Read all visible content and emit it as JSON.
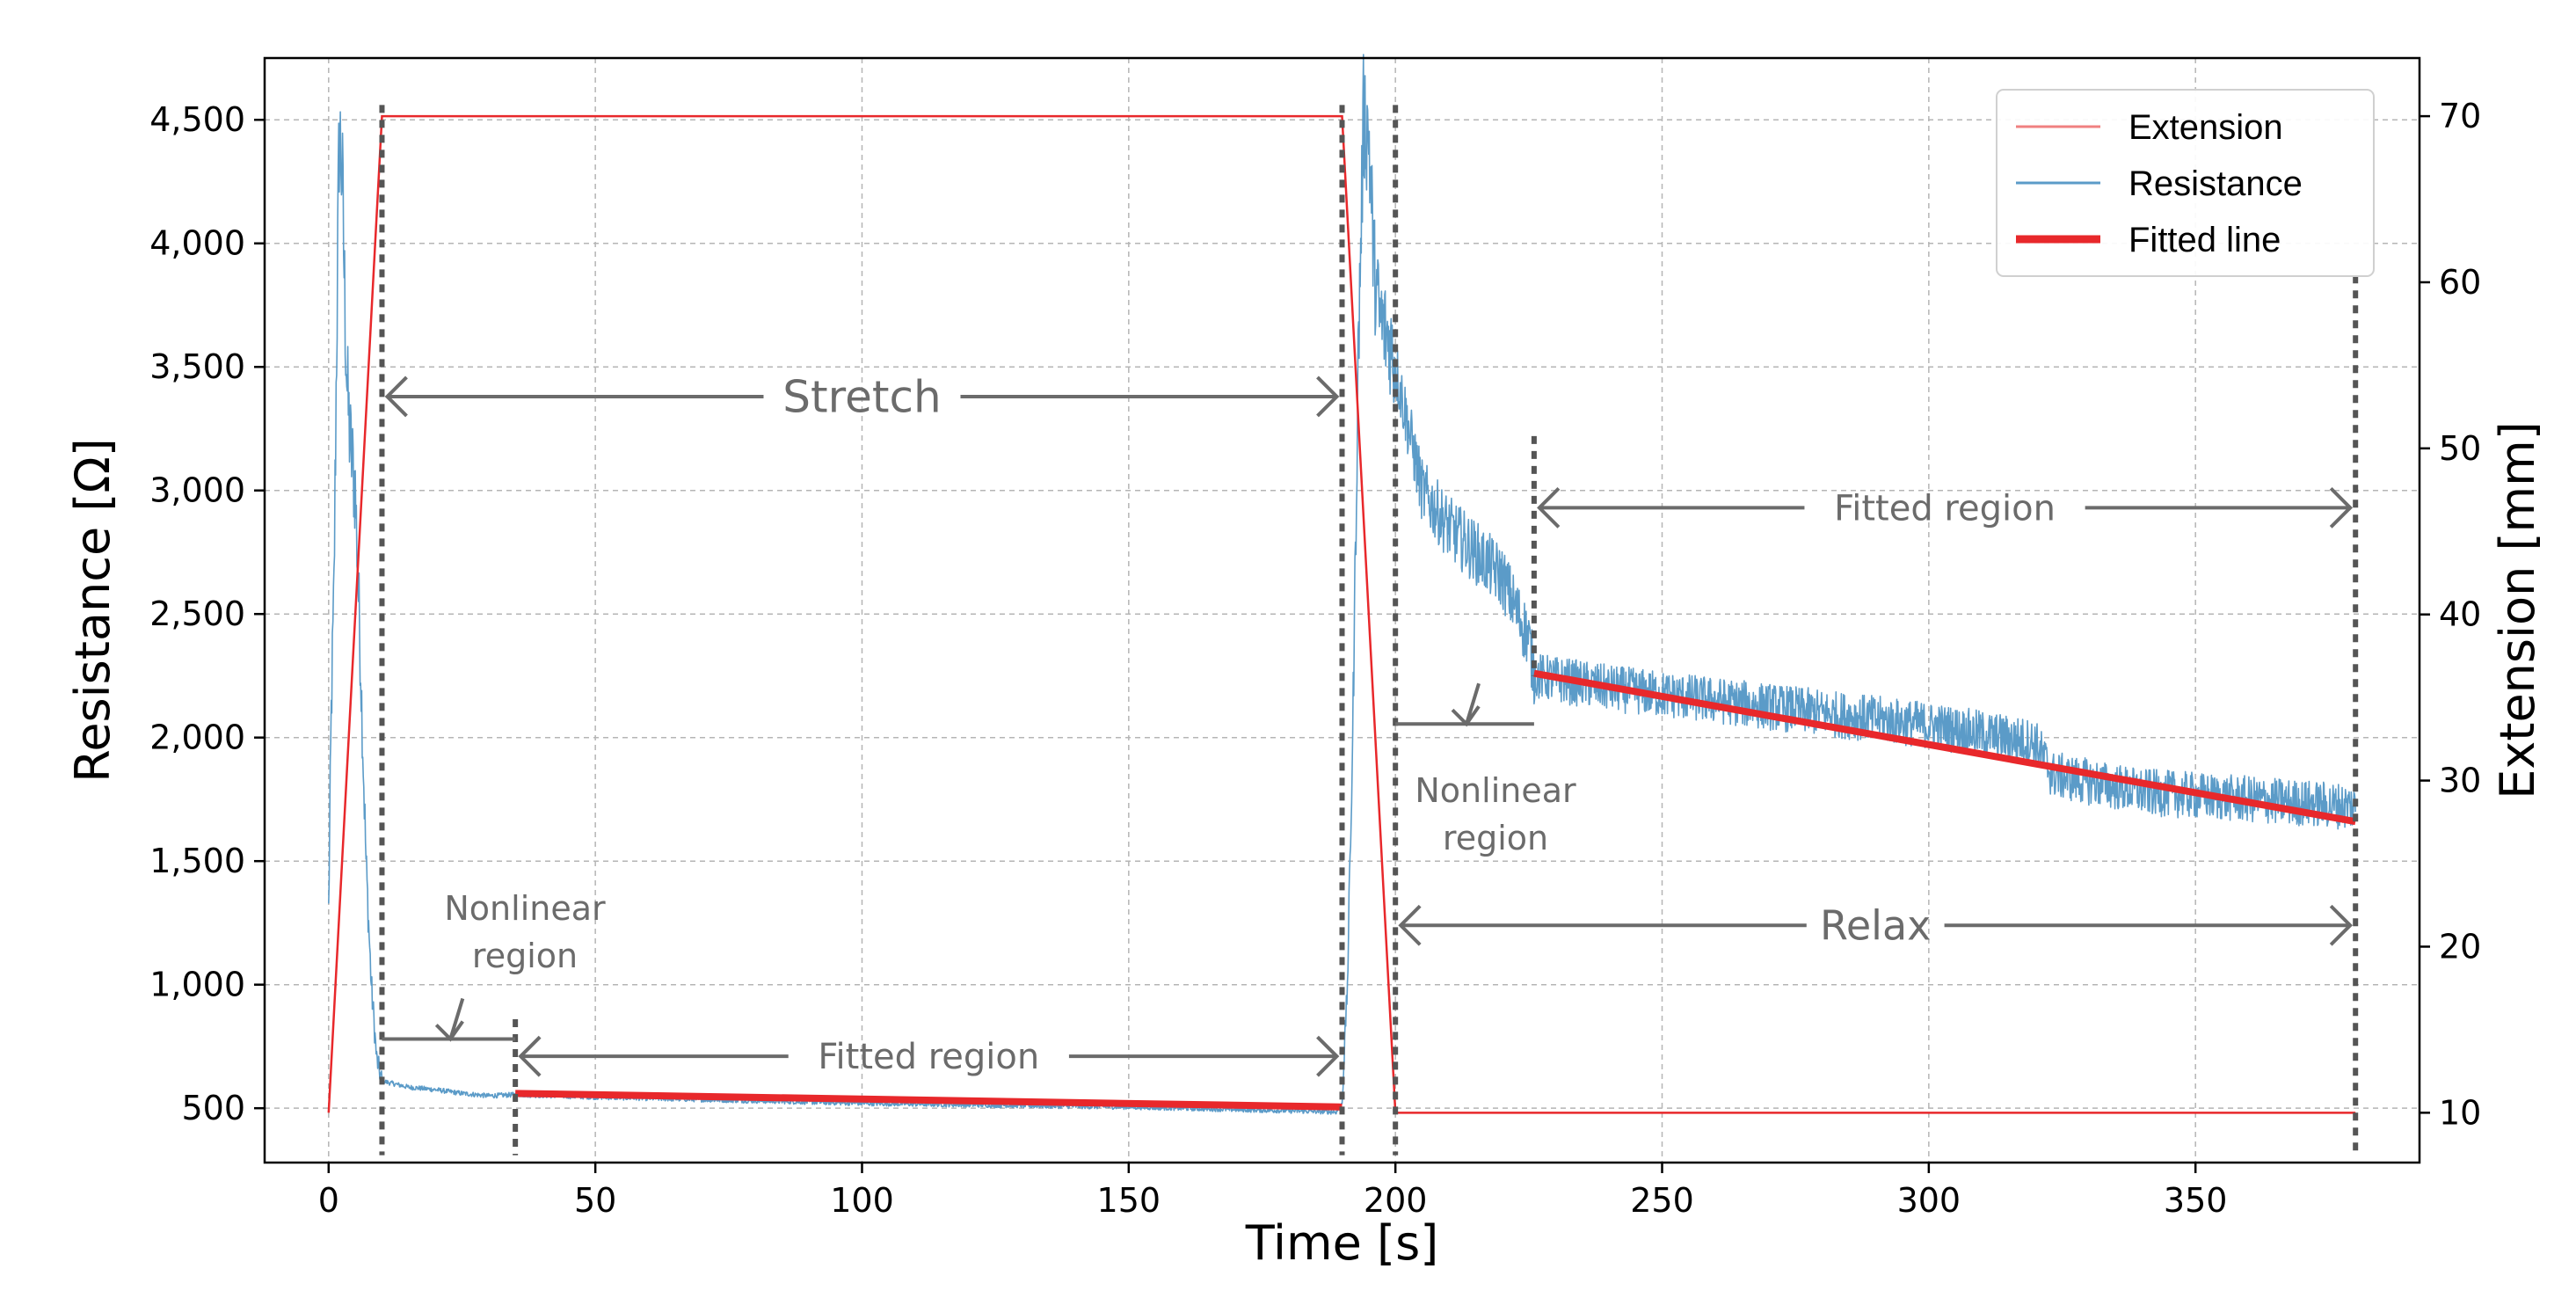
{
  "chart_data": {
    "type": "line",
    "xlabel": "Time [s]",
    "ylabel_left": "Resistance  [Ω]",
    "ylabel_right": "Extension  [mm]",
    "xlim": [
      -12,
      392
    ],
    "ylim_left": [
      280,
      4750
    ],
    "ylim_right": [
      7,
      73.5
    ],
    "x_ticks": [
      0,
      50,
      100,
      150,
      200,
      250,
      300,
      350
    ],
    "x_tick_labels": [
      "0",
      "50",
      "100",
      "150",
      "200",
      "250",
      "300",
      "350"
    ],
    "y_left_ticks": [
      500,
      1000,
      1500,
      2000,
      2500,
      3000,
      3500,
      4000,
      4500
    ],
    "y_left_tick_labels": [
      "500",
      "1,000",
      "1,500",
      "2,000",
      "2,500",
      "3,000",
      "3,500",
      "4,000",
      "4,500"
    ],
    "y_right_ticks": [
      10,
      20,
      30,
      40,
      50,
      60,
      70
    ],
    "y_right_tick_labels": [
      "10",
      "20",
      "30",
      "40",
      "50",
      "60",
      "70"
    ],
    "grid": true,
    "legend_position": "top-right",
    "legend": [
      {
        "label": "Extension",
        "color": "#f08080"
      },
      {
        "label": "Resistance",
        "color": "#5b9bc8"
      },
      {
        "label": "Fitted line",
        "color": "#e8282b"
      }
    ],
    "series": [
      {
        "name": "Extension",
        "axis": "right",
        "color": "#e8282b",
        "x": [
          0,
          10,
          190,
          200,
          380
        ],
        "y": [
          10,
          70,
          70,
          10,
          10
        ]
      },
      {
        "name": "Resistance",
        "axis": "left",
        "color": "#5b9bc8",
        "x": [
          0,
          0.5,
          1,
          1.5,
          2,
          2.5,
          3,
          3.5,
          4,
          5,
          6,
          7,
          8,
          9,
          10,
          12,
          15,
          20,
          25,
          30,
          35,
          50,
          100,
          150,
          189,
          190,
          191,
          192,
          193,
          194,
          195,
          196,
          197,
          198,
          199,
          200,
          205,
          210,
          215,
          220,
          225,
          226,
          240,
          260,
          280,
          300,
          320,
          322,
          323,
          340,
          360,
          380
        ],
        "y": [
          1300,
          2100,
          2600,
          3600,
          4450,
          4300,
          3800,
          3400,
          3200,
          3000,
          2300,
          1500,
          1000,
          700,
          610,
          600,
          585,
          575,
          560,
          550,
          555,
          545,
          520,
          505,
          485,
          520,
          1000,
          2000,
          3500,
          4500,
          4450,
          3900,
          3700,
          3650,
          3600,
          3500,
          3000,
          2850,
          2750,
          2650,
          2400,
          2250,
          2200,
          2150,
          2100,
          2050,
          1980,
          1900,
          1850,
          1780,
          1750,
          1720
        ],
        "noise": "high-frequency fluctuation around the trend"
      },
      {
        "name": "Fitted line",
        "axis": "left",
        "color": "#e8282b",
        "segments": [
          {
            "x": [
              35,
              190
            ],
            "y": [
              560,
              505
            ]
          },
          {
            "x": [
              226,
              380
            ],
            "y": [
              2260,
              1660
            ]
          }
        ]
      }
    ],
    "annotations": [
      {
        "text": "Stretch",
        "from_x": 10,
        "to_x": 190,
        "at_y": 3380
      },
      {
        "text": "Fitted region",
        "from_x": 35,
        "to_x": 190,
        "at_y": 710
      },
      {
        "text": "Nonlinear",
        "line2": "region",
        "from_x": 10,
        "to_x": 35,
        "at_y": 780
      },
      {
        "text": "Fitted region",
        "from_x": 226,
        "to_x": 380,
        "at_y": 2930
      },
      {
        "text": "Nonlinear",
        "line2": "region",
        "from_x": 200,
        "to_x": 226,
        "at_y": 2055
      },
      {
        "text": "Relax",
        "from_x": 200,
        "to_x": 380,
        "at_y": 1240
      }
    ],
    "vertical_markers": [
      {
        "x": 10,
        "y_range": [
          310,
          4560
        ]
      },
      {
        "x": 35,
        "y_range": [
          310,
          860
        ]
      },
      {
        "x": 190,
        "y_range": [
          310,
          4560
        ]
      },
      {
        "x": 200,
        "y_range": [
          310,
          4560
        ]
      },
      {
        "x": 226,
        "y_range": [
          2250,
          3220
        ]
      },
      {
        "x": 380,
        "y_range": [
          310,
          3870
        ]
      }
    ]
  }
}
